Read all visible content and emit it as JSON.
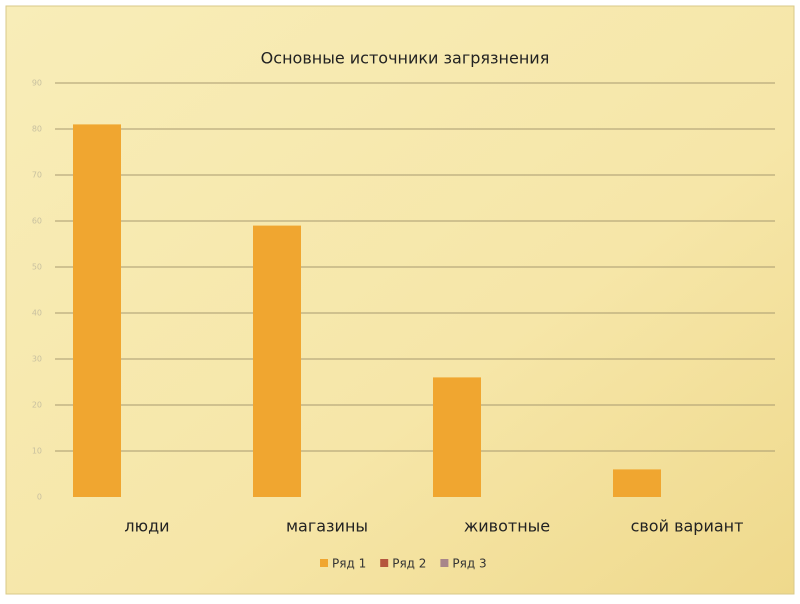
{
  "chart_data": {
    "type": "bar",
    "title": "Основные источники загрязнения",
    "categories": [
      "люди",
      "магазины",
      "животные",
      "свой вариант"
    ],
    "series": [
      {
        "name": "Ряд 1",
        "color": "#f0a630",
        "values": [
          81,
          59,
          26,
          6
        ]
      },
      {
        "name": "Ряд 2",
        "color": "#b5563e",
        "values": [
          null,
          null,
          null,
          null
        ]
      },
      {
        "name": "Ряд 3",
        "color": "#a8868a",
        "values": [
          null,
          null,
          null,
          null
        ]
      }
    ],
    "ylim": [
      0,
      90
    ],
    "yticks": [
      0,
      10,
      20,
      30,
      40,
      50,
      60,
      70,
      80,
      90
    ],
    "grid": true,
    "legend": "bottom"
  }
}
